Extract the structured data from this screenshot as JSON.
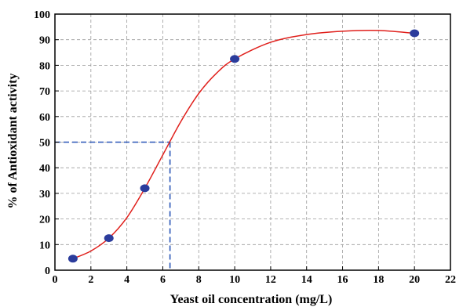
{
  "chart_data": {
    "type": "scatter",
    "title": "",
    "xlabel": "Yeast oil concentration (mg/L)",
    "ylabel": "% of Antioxidant activity",
    "xlim": [
      0,
      22
    ],
    "ylim": [
      0,
      100
    ],
    "x_ticks": [
      0,
      2,
      4,
      6,
      8,
      10,
      12,
      14,
      16,
      18,
      20,
      22
    ],
    "y_ticks": [
      0,
      10,
      20,
      30,
      40,
      50,
      60,
      70,
      80,
      90,
      100
    ],
    "grid": true,
    "series": [
      {
        "points": [
          {
            "x": 1,
            "y": 4.5
          },
          {
            "x": 3,
            "y": 12.5
          },
          {
            "x": 5,
            "y": 32
          },
          {
            "x": 10,
            "y": 82.5
          },
          {
            "x": 20,
            "y": 92.5
          }
        ],
        "marker_color": "#2b3c9c"
      }
    ],
    "fit_curve": {
      "color": "#e0201c",
      "points": [
        {
          "x": 1,
          "y": 4.5
        },
        {
          "x": 2,
          "y": 7.5
        },
        {
          "x": 3,
          "y": 12.5
        },
        {
          "x": 4,
          "y": 20.5
        },
        {
          "x": 5,
          "y": 32
        },
        {
          "x": 6,
          "y": 45
        },
        {
          "x": 7,
          "y": 58
        },
        {
          "x": 8,
          "y": 69
        },
        {
          "x": 9,
          "y": 77
        },
        {
          "x": 10,
          "y": 82.5
        },
        {
          "x": 12,
          "y": 89
        },
        {
          "x": 14,
          "y": 92
        },
        {
          "x": 16,
          "y": 93.3
        },
        {
          "x": 18,
          "y": 93.6
        },
        {
          "x": 20,
          "y": 92.5
        }
      ]
    },
    "reference_lines": {
      "color": "#2a57b8",
      "ic50_x": 6.4,
      "ic50_y": 50
    }
  }
}
